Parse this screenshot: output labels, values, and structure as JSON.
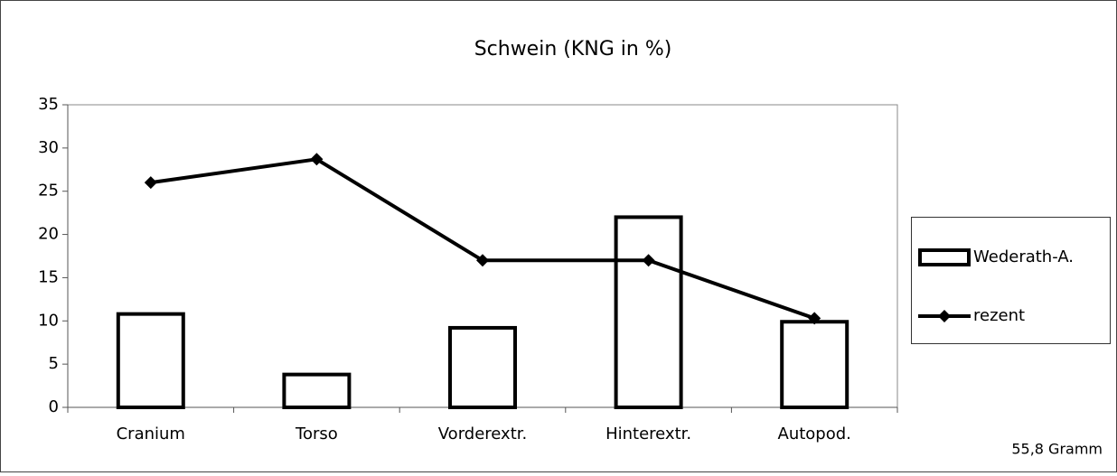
{
  "chart_data": {
    "type": "bar",
    "title": "Schwein (KNG in %)",
    "annotation": "55,8 Gramm",
    "categories": [
      "Cranium",
      "Torso",
      "Vorderextr.",
      "Hinterextr.",
      "Autopod."
    ],
    "series": [
      {
        "name": "Wederath-A.",
        "type": "bar",
        "color": "#000000",
        "values": [
          10.8,
          3.8,
          9.2,
          22,
          9.9
        ]
      },
      {
        "name": "rezent",
        "type": "line",
        "color": "#000000",
        "values": [
          26,
          28.7,
          17,
          17,
          10.3
        ]
      }
    ],
    "ylim": [
      0,
      35
    ],
    "yticks": [
      0,
      5,
      10,
      15,
      20,
      25,
      30,
      35
    ],
    "legend": "right"
  }
}
